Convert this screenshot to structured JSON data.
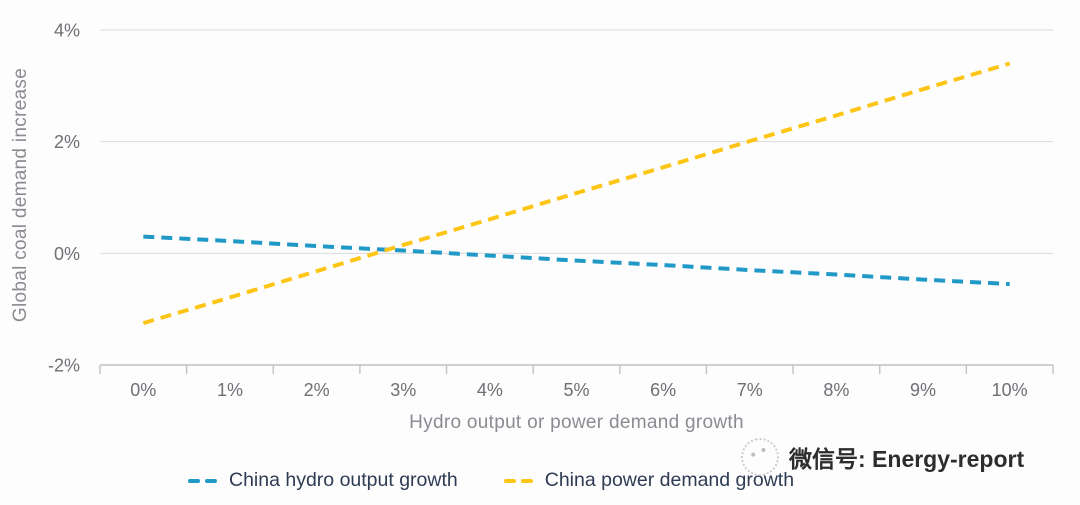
{
  "watermark": {
    "icon": "wechat-icon",
    "text": "微信号: Energy-report"
  },
  "colors": {
    "background": "#fdfdfe",
    "gridline": "#dcdcdc",
    "axis": "#c2c2c6",
    "tick_text": "#6f6f74",
    "axis_title_text": "#8b8b92",
    "legend_text": "#2e3b52",
    "watermark_text": "#2d2d2d",
    "series_blue": "#2199c6",
    "series_yellow": "#fdc515"
  },
  "chart_data": {
    "type": "line",
    "title": "",
    "xlabel": "Hydro output or power demand growth",
    "ylabel": "Global coal demand increase",
    "x_ticks": [
      "0%",
      "1%",
      "2%",
      "3%",
      "4%",
      "5%",
      "6%",
      "7%",
      "8%",
      "9%",
      "10%"
    ],
    "x_values": [
      0,
      1,
      2,
      3,
      4,
      5,
      6,
      7,
      8,
      9,
      10
    ],
    "y_ticks": [
      {
        "value": 4,
        "label": "4%"
      },
      {
        "value": 2,
        "label": "2%"
      },
      {
        "value": 0,
        "label": "0%"
      },
      {
        "value": -2,
        "label": "-2%"
      }
    ],
    "ylim": [
      -2,
      4
    ],
    "grid": "horizontal",
    "line_style": "dashed",
    "legend_position": "bottom",
    "series": [
      {
        "name": "China hydro output growth",
        "color": "#2199c6",
        "style": "dashed",
        "values": [
          0.3,
          0.22,
          0.13,
          0.05,
          -0.04,
          -0.13,
          -0.21,
          -0.3,
          -0.38,
          -0.47,
          -0.55
        ]
      },
      {
        "name": "China power demand growth",
        "color": "#fdc515",
        "style": "dashed",
        "values": [
          -1.25,
          -0.79,
          -0.32,
          0.15,
          0.61,
          1.08,
          1.54,
          2.01,
          2.47,
          2.94,
          3.4
        ]
      }
    ]
  }
}
